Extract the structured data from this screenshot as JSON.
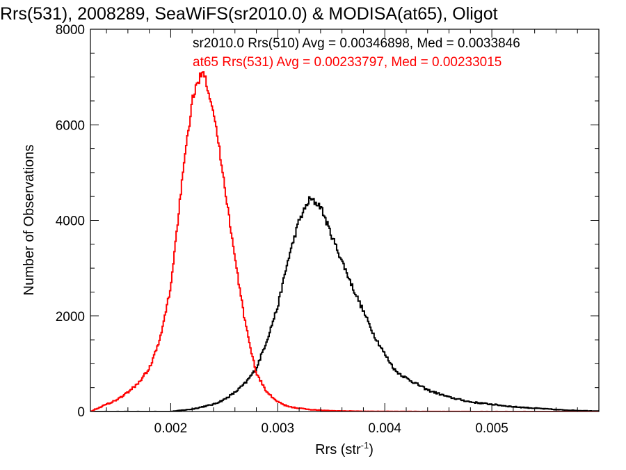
{
  "chart_data": {
    "type": "line",
    "title": "Rrs(531), 2008289, SeaWiFS(sr2010.0) & MODISA(at65), Oligot",
    "xlabel": "Rrs (str",
    "xlabel_sup": "-1",
    "xlabel_close": ")",
    "ylabel": "Number of Observations",
    "xlim": [
      0.00125,
      0.006
    ],
    "ylim": [
      0,
      8000
    ],
    "x_ticks": [
      0.002,
      0.003,
      0.004,
      0.005
    ],
    "x_tick_labels": [
      "0.002",
      "0.003",
      "0.004",
      "0.005"
    ],
    "y_ticks": [
      0,
      2000,
      4000,
      6000,
      8000
    ],
    "y_tick_labels": [
      "0",
      "2000",
      "4000",
      "6000",
      "8000"
    ],
    "grid": false,
    "style": "histogram-step",
    "series": [
      {
        "name": "sr2010.0 Rrs(510) Avg = 0.00346898, Med = 0.0033846",
        "color": "#000000",
        "x": [
          0.00125,
          0.0014,
          0.0016,
          0.0018,
          0.002,
          0.0022,
          0.0024,
          0.0025,
          0.0026,
          0.0027,
          0.0028,
          0.0029,
          0.003,
          0.0031,
          0.0032,
          0.0033,
          0.0034,
          0.0035,
          0.0036,
          0.0037,
          0.0038,
          0.0039,
          0.004,
          0.0041,
          0.0042,
          0.0044,
          0.0046,
          0.0048,
          0.005,
          0.0052,
          0.0054,
          0.0056,
          0.0058,
          0.006
        ],
        "y": [
          0,
          0,
          0,
          0,
          0,
          50,
          150,
          250,
          400,
          600,
          900,
          1500,
          2200,
          3200,
          4000,
          4450,
          4300,
          3700,
          3150,
          2600,
          2100,
          1600,
          1200,
          850,
          700,
          450,
          300,
          200,
          150,
          100,
          70,
          40,
          20,
          10
        ]
      },
      {
        "name": "at65 Rrs(531) Avg = 0.00233797, Med = 0.00233015",
        "color": "#ff0000",
        "x": [
          0.00125,
          0.0014,
          0.0015,
          0.0016,
          0.0017,
          0.0018,
          0.0019,
          0.002,
          0.0021,
          0.0022,
          0.0023,
          0.0024,
          0.0025,
          0.0026,
          0.0027,
          0.0028,
          0.0029,
          0.003,
          0.0031,
          0.0033,
          0.0035,
          0.0038,
          0.0042,
          0.005,
          0.006
        ],
        "y": [
          0,
          150,
          250,
          400,
          600,
          900,
          1500,
          2600,
          4700,
          6500,
          7200,
          6300,
          4800,
          3200,
          1800,
          800,
          400,
          200,
          100,
          40,
          15,
          5,
          2,
          0,
          0
        ]
      }
    ]
  }
}
